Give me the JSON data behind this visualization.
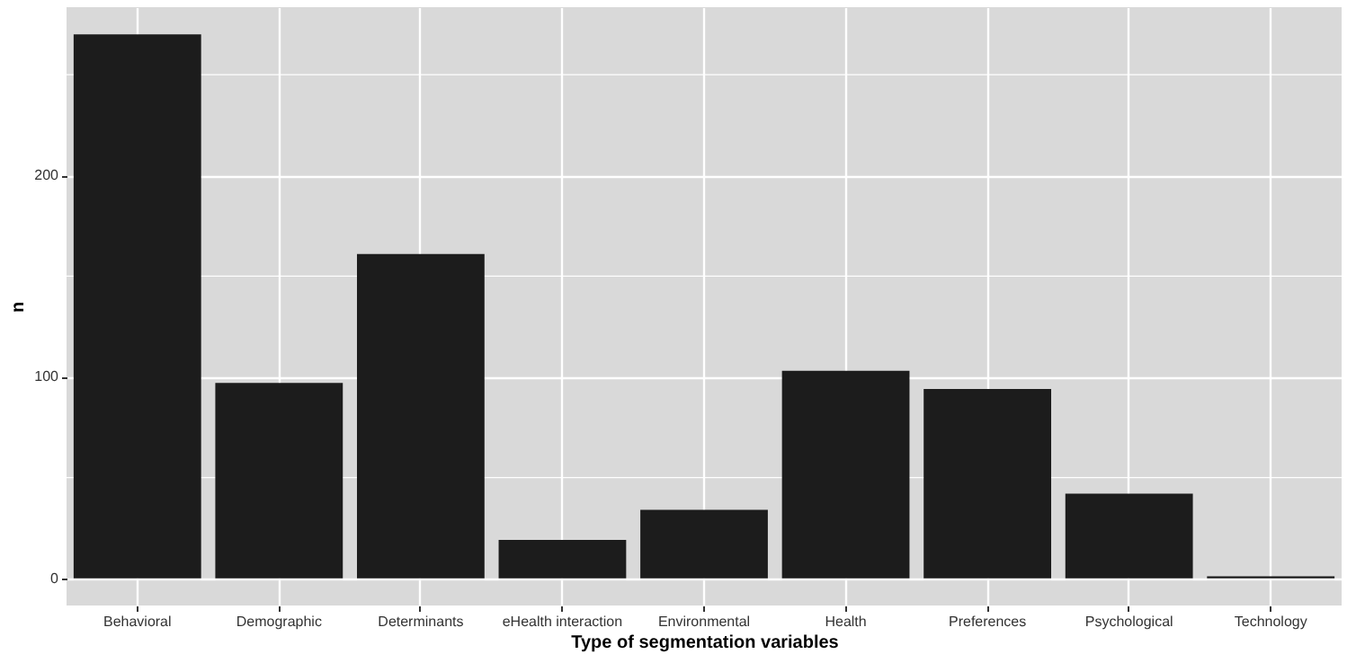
{
  "chart_data": {
    "type": "bar",
    "xlabel": "Type of segmentation variables",
    "ylabel": "n",
    "categories": [
      "Behavioral",
      "Demographic",
      "Determinants",
      "eHealth interaction",
      "Environmental",
      "Health",
      "Preferences",
      "Psychological",
      "Technology"
    ],
    "values": [
      270,
      97,
      161,
      19,
      34,
      103,
      94,
      42,
      1
    ],
    "color": "#1c1c1c",
    "ylim": [
      -13.5,
      283.5
    ],
    "yticks": [
      0,
      100,
      200
    ],
    "grid": true
  }
}
